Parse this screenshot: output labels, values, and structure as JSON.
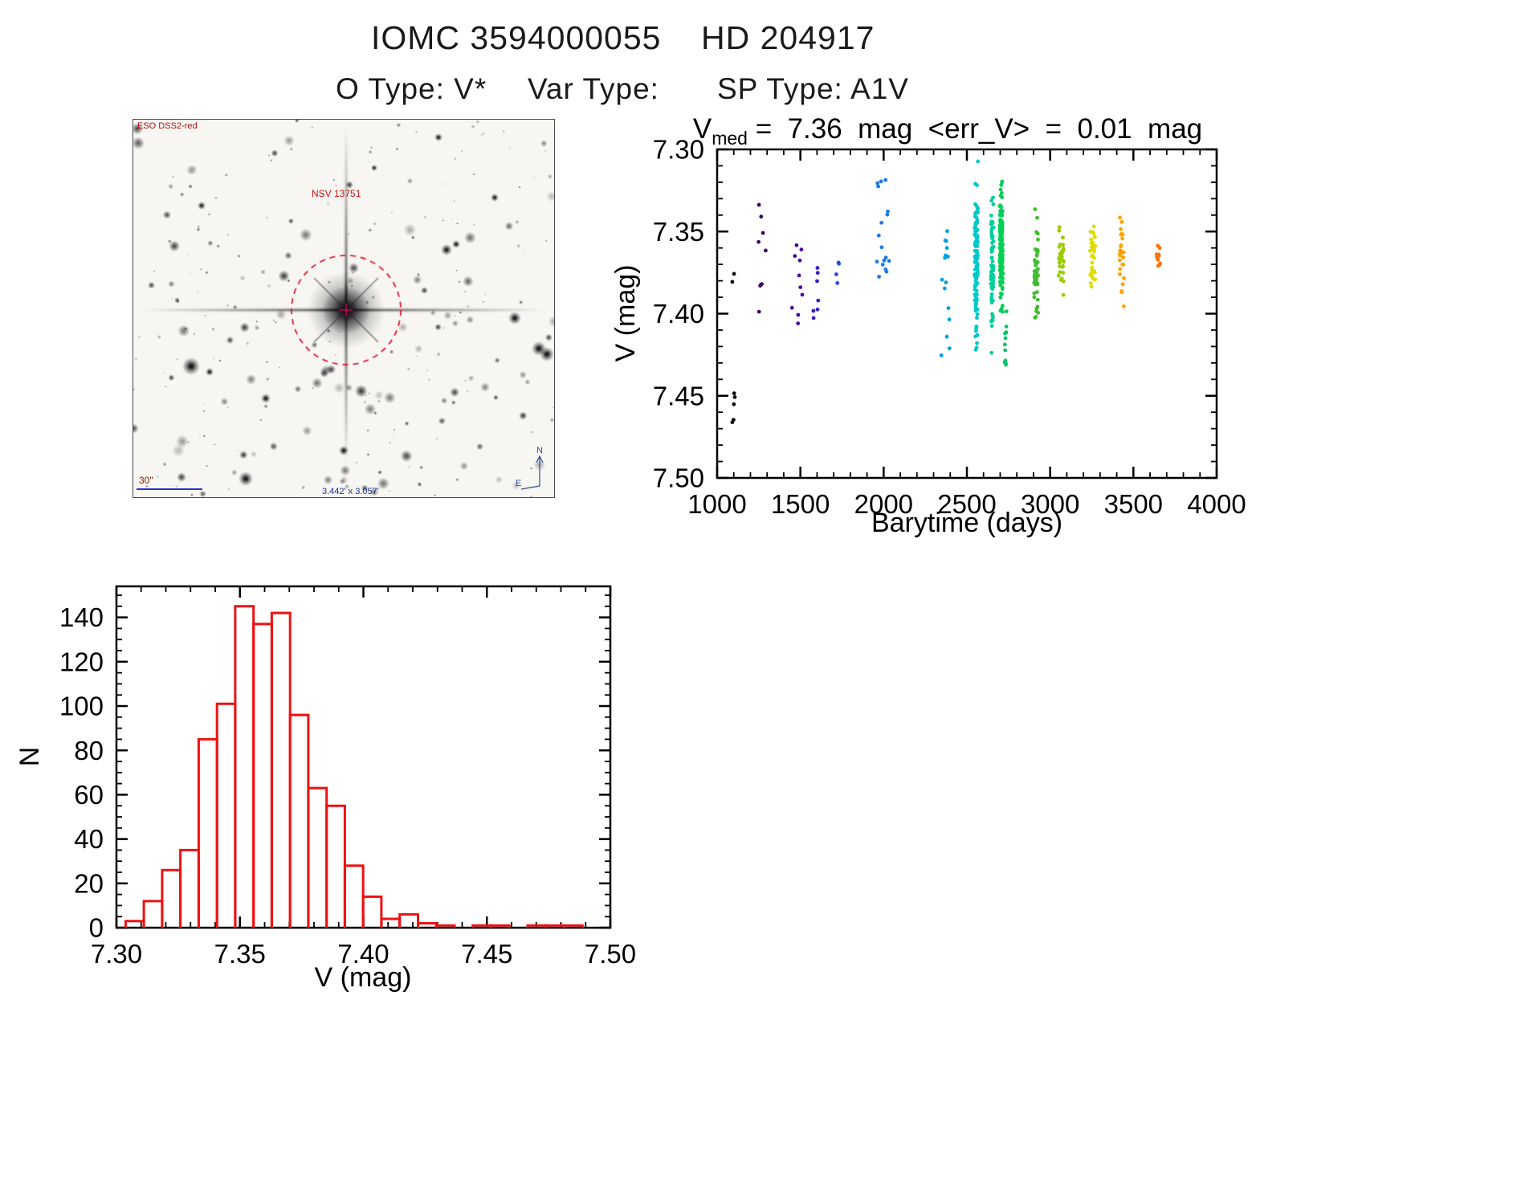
{
  "page": {
    "title": "IOMC 3594000055    HD 204917",
    "subtitle_o_type": "O Type: V*",
    "subtitle_var_type": "Var Type:",
    "subtitle_sp_type": "SP Type: A1V"
  },
  "finding_chart": {
    "survey_label": "ESO DSS2-red",
    "star_label": "NSV 13751",
    "scale_label": "30\"",
    "size_label": "3.442' x 3.057'",
    "compass_north": "N",
    "compass_east": "E"
  },
  "chart_data": [
    {
      "id": "lightcurve",
      "type": "scatter",
      "title_prefix": "V",
      "title_sub": "med",
      "title_rest": " =  7.36  mag  <err_V>  =  0.01  mag",
      "xlabel": "Barytime (days)",
      "ylabel": "V (mag)",
      "xlim": [
        1000,
        4000
      ],
      "ylim": [
        7.3,
        7.5
      ],
      "y_axis_inverted": true,
      "xticks": [
        1000,
        1500,
        2000,
        2500,
        3000,
        3500,
        4000
      ],
      "yticks": [
        7.3,
        7.35,
        7.4,
        7.45,
        7.5
      ],
      "legend": "points colored by observation time, rainbow colormap (early=dark/purple, late=orange/red)",
      "clusters": [
        {
          "x": 1105,
          "x_spread": 14,
          "n": 7,
          "v_min": 7.368,
          "v_max": 7.488,
          "color": "#0a0a12",
          "uniform": true
        },
        {
          "x": 1265,
          "x_spread": 28,
          "n": 9,
          "v_min": 7.318,
          "v_max": 7.402,
          "color": "#3b0764",
          "uniform": true
        },
        {
          "x": 1480,
          "x_spread": 32,
          "n": 10,
          "v_min": 7.346,
          "v_max": 7.424,
          "color": "#4c0b9b",
          "uniform": true
        },
        {
          "x": 1590,
          "x_spread": 26,
          "n": 7,
          "v_min": 7.368,
          "v_max": 7.416,
          "color": "#3c18c8",
          "uniform": true
        },
        {
          "x": 1720,
          "x_spread": 16,
          "n": 4,
          "v_min": 7.368,
          "v_max": 7.392,
          "color": "#2b46e0",
          "uniform": true
        },
        {
          "x": 1995,
          "x_spread": 38,
          "n": 17,
          "v_min": 7.318,
          "v_max": 7.378,
          "color": "#1e7ae5",
          "uniform": true
        },
        {
          "x": 2370,
          "x_spread": 28,
          "n": 15,
          "v_min": 7.336,
          "v_max": 7.426,
          "color": "#00a0dc",
          "uniform": true
        },
        {
          "x": 2556,
          "x_spread": 10,
          "n": 110,
          "v_min": 7.302,
          "v_max": 7.438,
          "color": "#00c8c8",
          "uniform": false
        },
        {
          "x": 2652,
          "x_spread": 8,
          "n": 70,
          "v_min": 7.318,
          "v_max": 7.426,
          "color": "#00cf9a",
          "uniform": false
        },
        {
          "x": 2706,
          "x_spread": 9,
          "n": 170,
          "v_min": 7.312,
          "v_max": 7.408,
          "color": "#00d055",
          "uniform": false
        },
        {
          "x": 2732,
          "x_spread": 6,
          "n": 12,
          "v_min": 7.398,
          "v_max": 7.432,
          "color": "#0cc46a",
          "uniform": true
        },
        {
          "x": 2916,
          "x_spread": 12,
          "n": 45,
          "v_min": 7.324,
          "v_max": 7.418,
          "color": "#3fbe2e",
          "uniform": false
        },
        {
          "x": 3066,
          "x_spread": 16,
          "n": 32,
          "v_min": 7.338,
          "v_max": 7.402,
          "color": "#9ccb00",
          "uniform": false
        },
        {
          "x": 3256,
          "x_spread": 16,
          "n": 32,
          "v_min": 7.334,
          "v_max": 7.396,
          "color": "#dedc00",
          "uniform": false
        },
        {
          "x": 3430,
          "x_spread": 13,
          "n": 27,
          "v_min": 7.334,
          "v_max": 7.406,
          "color": "#ffa200",
          "uniform": false
        },
        {
          "x": 3650,
          "x_spread": 11,
          "n": 13,
          "v_min": 7.348,
          "v_max": 7.382,
          "color": "#ff7300",
          "uniform": false
        }
      ]
    },
    {
      "id": "v-histogram",
      "type": "bar",
      "xlabel": "V (mag)",
      "ylabel": "N",
      "xlim": [
        7.3,
        7.5
      ],
      "ylim": [
        0,
        154
      ],
      "xticks": [
        7.3,
        7.35,
        7.4,
        7.45,
        7.5
      ],
      "yticks": [
        0,
        20,
        40,
        60,
        80,
        100,
        120,
        140
      ],
      "bar_color": "#ee1111",
      "bins": {
        "start": 7.3037,
        "width": 0.0074,
        "counts": [
          3,
          12,
          26,
          35,
          85,
          101,
          145,
          137,
          142,
          96,
          63,
          55,
          28,
          14,
          4,
          6,
          2,
          1,
          0,
          1,
          1,
          0,
          1,
          1,
          1
        ]
      }
    }
  ]
}
